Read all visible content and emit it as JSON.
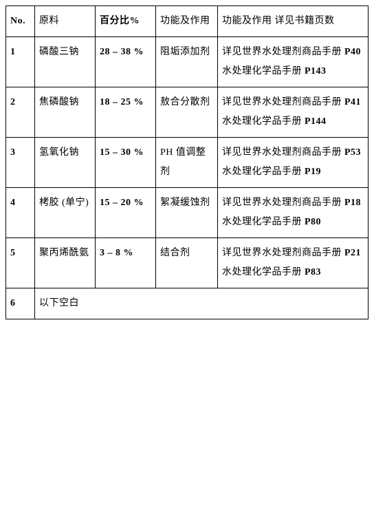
{
  "table": {
    "headers": {
      "no": "No.",
      "material": "原料",
      "percent": "百分比%",
      "function": "功能及作用",
      "reference": "功能及作用   详见书籍页数"
    },
    "rows": [
      {
        "no": "1",
        "material": "磷酸三钠",
        "percent": "28 – 38 %",
        "function": "阻垢添加剂",
        "ref1_prefix": "详见世界水处理剂商品手册  ",
        "ref1_page": "P40",
        "ref2_prefix": "水处理化学品手册  ",
        "ref2_page": "P143"
      },
      {
        "no": "2",
        "material": "焦磷酸钠",
        "percent": "18 – 25 %",
        "function": "敖合分散剂",
        "ref1_prefix": "详见世界水处理剂商品手册  ",
        "ref1_page": "P41",
        "ref2_prefix": "水处理化学品手册  ",
        "ref2_page": "P144"
      },
      {
        "no": "3",
        "material": "氢氧化钠",
        "percent": "15 – 30 %",
        "function": "PH  值调整剂",
        "ref1_prefix": "详见世界水处理剂商品手册  ",
        "ref1_page": "P53",
        "ref2_prefix": "水处理化学品手册   ",
        "ref2_page": "P19"
      },
      {
        "no": "4",
        "material": "栲胶   (单宁)",
        "percent": "15 – 20 %",
        "function": "絮凝缓蚀剂",
        "ref1_prefix": "详见世界水处理剂商品手册  ",
        "ref1_page": "P18",
        "ref2_prefix": "水处理化学品手册  ",
        "ref2_page": "P80"
      },
      {
        "no": "5",
        "material": "聚丙烯酰氨",
        "percent": "3 – 8 %",
        "function": "结合剂",
        "ref1_prefix": "详见世界水处理剂商品手册  ",
        "ref1_page": "P21",
        "ref2_prefix": "水处理化学品手册  ",
        "ref2_page": "P83"
      }
    ],
    "blank": {
      "no": "6",
      "text": "以下空白"
    }
  },
  "styling": {
    "border_color": "#000000",
    "background_color": "#ffffff",
    "font_size_base": 14,
    "line_height": 2.0,
    "col_widths": {
      "no": 42,
      "material": 88,
      "percent": 88,
      "function": 90
    }
  }
}
